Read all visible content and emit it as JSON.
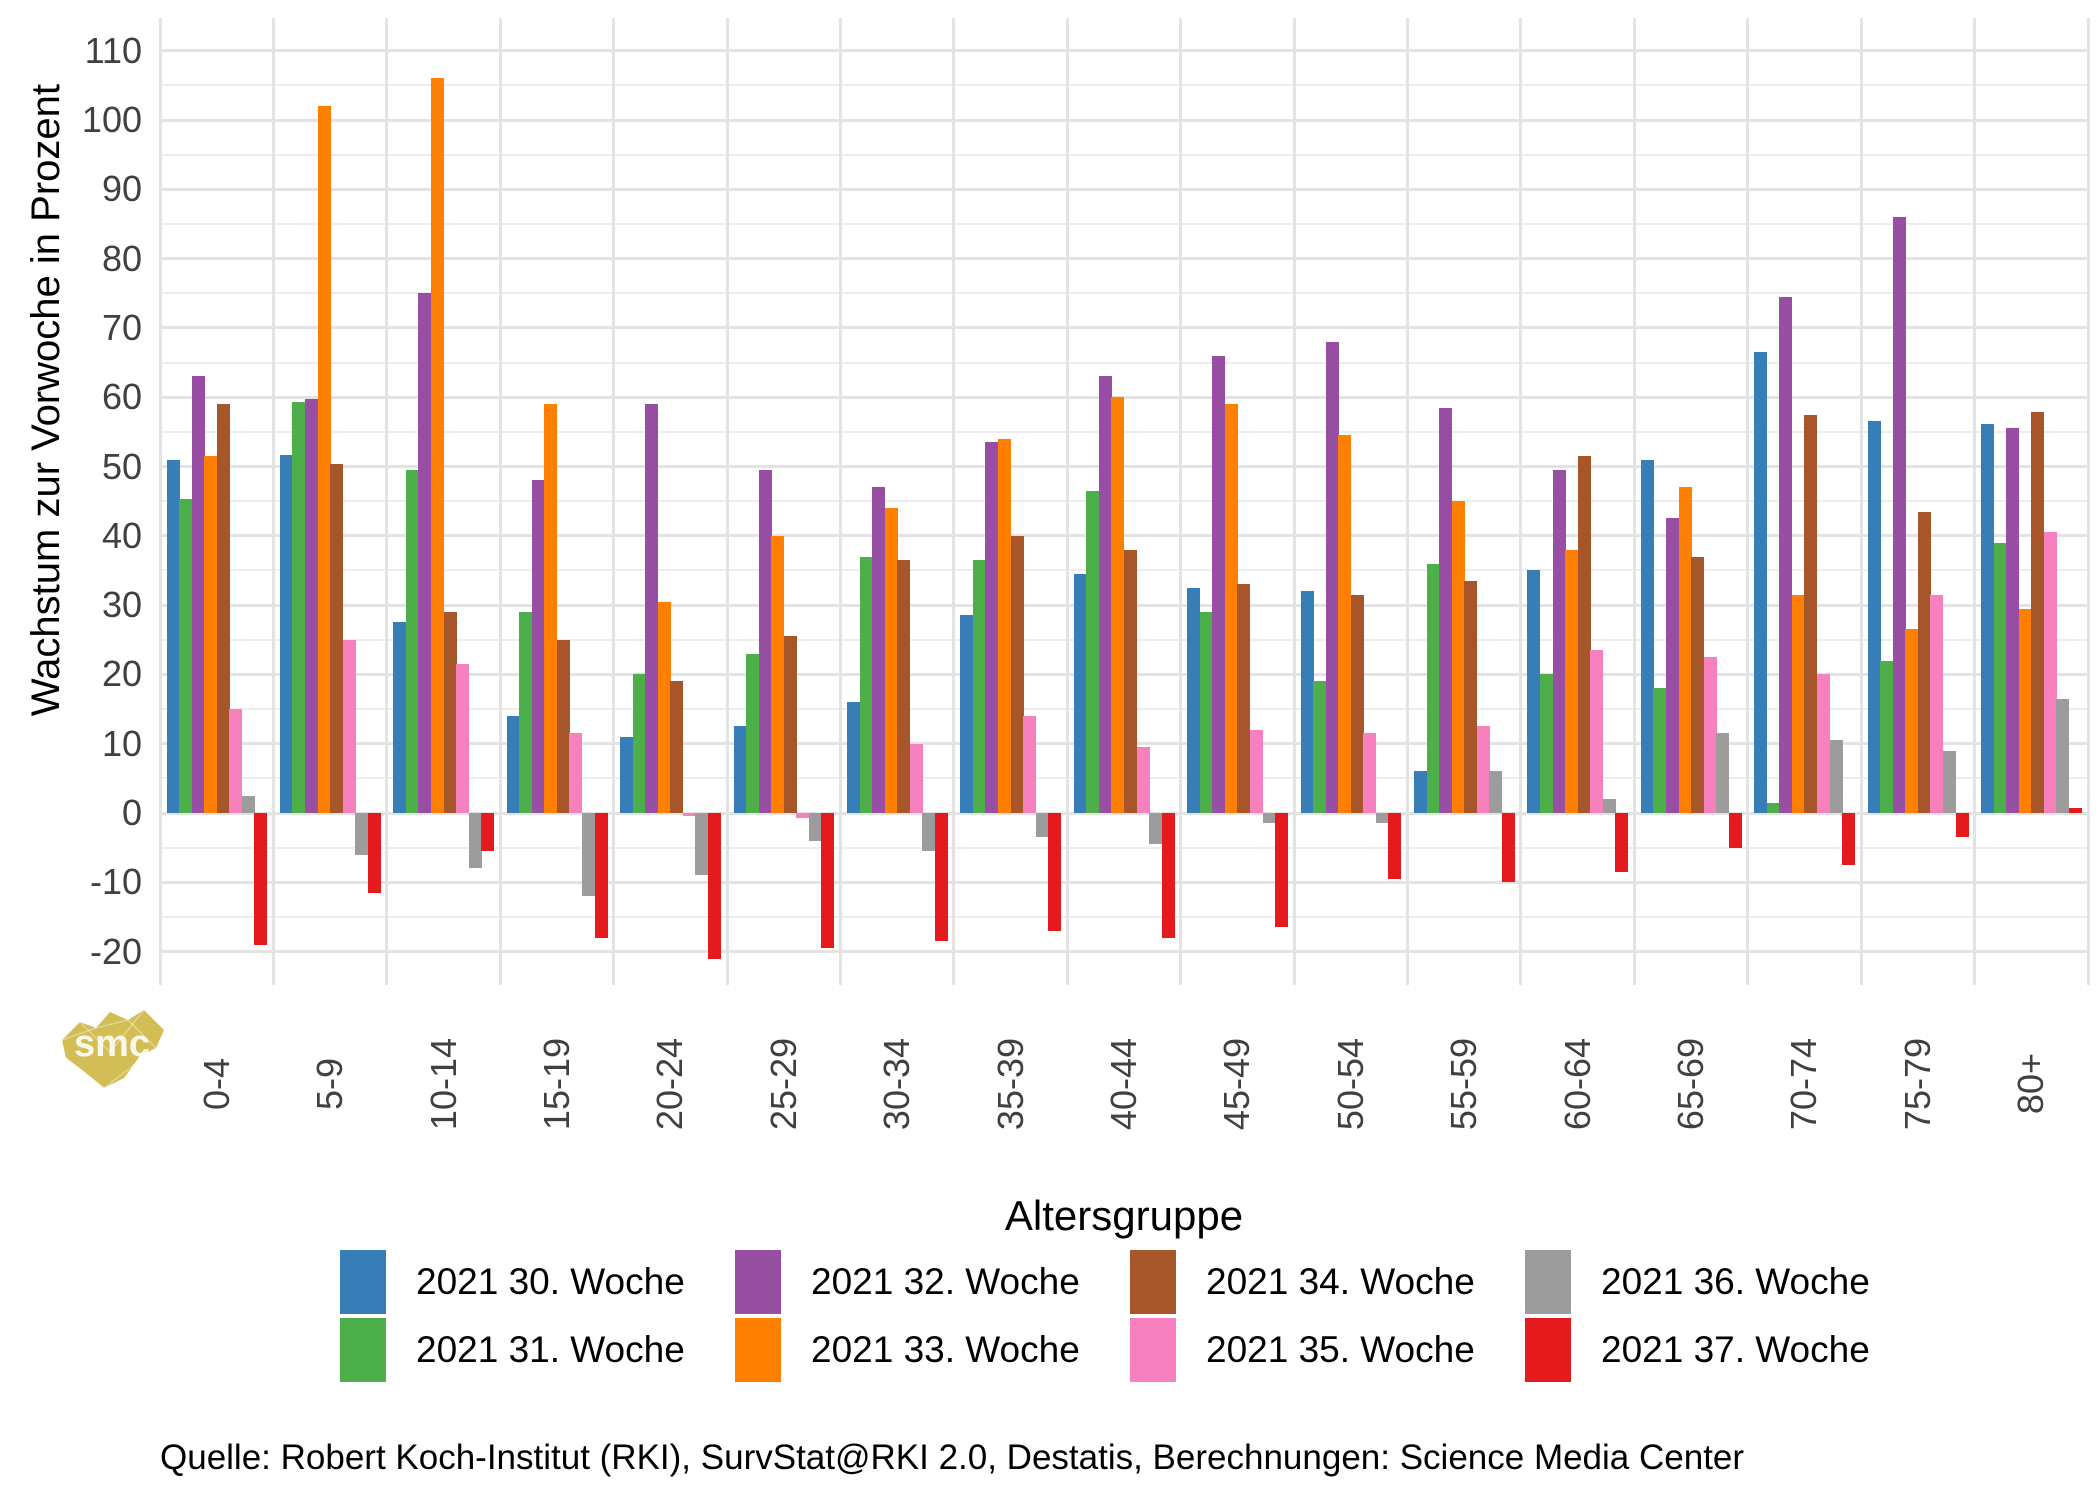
{
  "chart_data": {
    "type": "bar",
    "title": "",
    "xlabel": "Altersgruppe",
    "ylabel": "Wachstum zur Vorwoche in Prozent",
    "ylim": [
      -25,
      114
    ],
    "yticks": [
      110,
      100,
      90,
      80,
      70,
      60,
      50,
      40,
      30,
      20,
      10,
      0,
      -10,
      -20
    ],
    "grid": true,
    "legend_position": "bottom",
    "legend_columns": 4,
    "categories": [
      "0-4",
      "5-9",
      "10-14",
      "15-19",
      "20-24",
      "25-29",
      "30-34",
      "35-39",
      "40-44",
      "45-49",
      "50-54",
      "55-59",
      "60-64",
      "65-69",
      "70-74",
      "75-79",
      "80+"
    ],
    "series": [
      {
        "name": "2021 30. Woche",
        "color": "#377EB8",
        "values": [
          51,
          51.7,
          27.5,
          14,
          11,
          12.5,
          16,
          28.5,
          34.5,
          32.5,
          32,
          6,
          35,
          51,
          66.5,
          56.5,
          56.2
        ]
      },
      {
        "name": "2021 31. Woche",
        "color": "#4DAF4A",
        "values": [
          45.3,
          59.3,
          49.5,
          29,
          20,
          23,
          37,
          36.5,
          46.5,
          29,
          19,
          36,
          20,
          18,
          1.5,
          22,
          39
        ]
      },
      {
        "name": "2021 32. Woche",
        "color": "#984EA3",
        "values": [
          63,
          59.8,
          75,
          48,
          59,
          49.5,
          47,
          53.5,
          63,
          66,
          68,
          58.5,
          49.5,
          42.5,
          74.5,
          86,
          55.6
        ]
      },
      {
        "name": "2021 33. Woche",
        "color": "#FF7F00",
        "values": [
          51.5,
          102,
          106,
          59,
          30.5,
          40,
          44,
          54,
          60,
          59,
          54.5,
          45,
          38,
          47,
          31.5,
          26.5,
          29.5
        ]
      },
      {
        "name": "2021 34. Woche",
        "color": "#A65628",
        "values": [
          59,
          50.4,
          29,
          25,
          19,
          25.5,
          36.5,
          40,
          38,
          33,
          31.5,
          33.5,
          51.5,
          37,
          57.5,
          43.5,
          57.8
        ]
      },
      {
        "name": "2021 35. Woche",
        "color": "#F781BF",
        "values": [
          15,
          25,
          21.5,
          11.5,
          -0.5,
          -0.7,
          10,
          14,
          9.5,
          12,
          11.5,
          12.5,
          23.5,
          22.5,
          20,
          31.5,
          40.5
        ]
      },
      {
        "name": "2021 36. Woche",
        "color": "#9C9C9C",
        "values": [
          2.5,
          -6,
          -8,
          -12,
          -9,
          -4,
          -5.5,
          -3.5,
          -4.5,
          -1.5,
          -1.5,
          6,
          2,
          11.5,
          10.5,
          9,
          16.5
        ]
      },
      {
        "name": "2021 37. Woche",
        "color": "#E41A1C",
        "values": [
          -19,
          -11.5,
          -5.5,
          -18,
          -21,
          -19.5,
          -18.5,
          -17,
          -18,
          -16.5,
          -9.5,
          -10,
          -8.5,
          -5,
          -7.5,
          -3.5,
          0.7
        ]
      }
    ]
  },
  "footer": {
    "source": "Quelle: Robert Koch-Institut (RKI), SurvStat@RKI 2.0, Destatis, Berechnungen: Science Media Center"
  },
  "logo": {
    "text": "smc",
    "color": "#D3BE55"
  }
}
